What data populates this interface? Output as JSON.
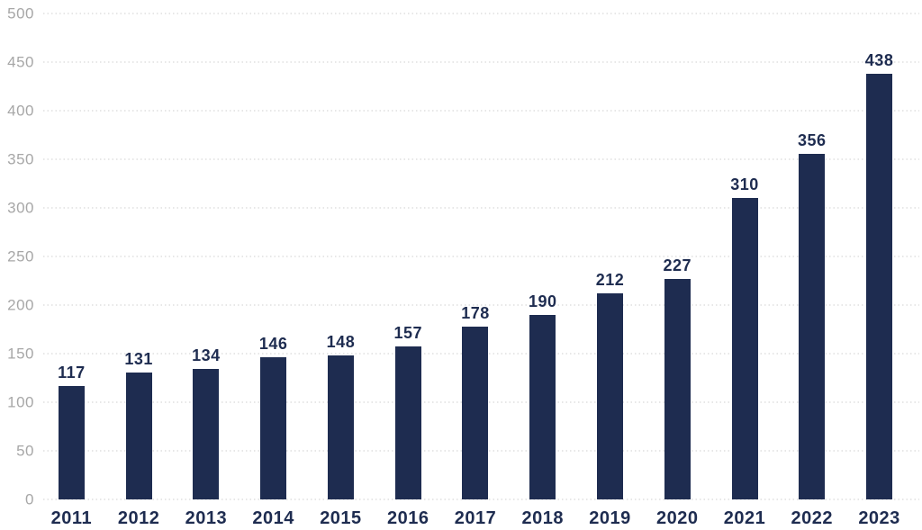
{
  "chart_data": {
    "type": "bar",
    "title": "",
    "xlabel": "",
    "ylabel": "",
    "categories": [
      "2011",
      "2012",
      "2013",
      "2014",
      "2015",
      "2016",
      "2017",
      "2018",
      "2019",
      "2020",
      "2021",
      "2022",
      "2023"
    ],
    "values": [
      117,
      131,
      134,
      146,
      148,
      157,
      178,
      190,
      212,
      227,
      310,
      356,
      438
    ],
    "ylim": [
      0,
      500
    ],
    "yticks": [
      0,
      50,
      100,
      150,
      200,
      250,
      300,
      350,
      400,
      450,
      500
    ],
    "grid": "horizontal-dotted",
    "legend_position": "none",
    "value_labels": "above-bars",
    "colors": {
      "bar": "#1e2c50",
      "value_label": "#1e2c50",
      "x_tick_label": "#1e2c50",
      "y_tick_label": "#a7a7a7",
      "gridline": "#cfcfcf",
      "background": "#ffffff"
    }
  }
}
